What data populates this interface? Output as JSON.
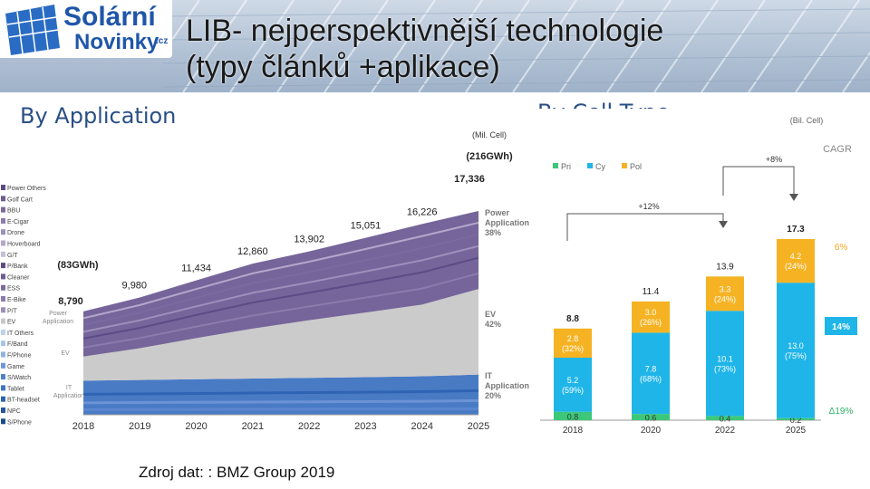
{
  "logo": {
    "word1": "Solární",
    "word2": "Novinky",
    "suffix": ".cz"
  },
  "title_line1": "LIB- nejperspektivnější technologie",
  "title_line2": "(typy článků +aplikace)",
  "credit": "Zdroj dat: : BMZ Group 2019",
  "colors": {
    "brand": "#1f56a8",
    "section": "#2a4f86",
    "pri": "#3cc878",
    "cy": "#1fb5e8",
    "pol": "#f5b323",
    "ev": "#c8c8c8",
    "power": "#6e5d95",
    "it": "#3f74c2"
  },
  "chart_data": [
    {
      "type": "area",
      "heading": "By Application",
      "unit_label": "(Mil. Cell)",
      "x": [
        "2018",
        "2019",
        "2020",
        "2021",
        "2022",
        "2023",
        "2024",
        "2025"
      ],
      "totals": [
        8790,
        9980,
        11434,
        12860,
        13902,
        15051,
        16226,
        17336
      ],
      "total_labels": [
        "8,790",
        "9,980",
        "11,434",
        "12,860",
        "13,902",
        "15,051",
        "16,226",
        "17,336"
      ],
      "start_note": "(83GWh)",
      "end_note": "(216GWh)",
      "series": [
        {
          "name": "IT",
          "values": [
            2900,
            2960,
            3020,
            3080,
            3140,
            3200,
            3270,
            3420
          ]
        },
        {
          "name": "EV",
          "values": [
            2050,
            2700,
            3500,
            4250,
            4900,
            5500,
            6100,
            7280
          ]
        },
        {
          "name": "Power",
          "values": [
            3840,
            4320,
            4914,
            5530,
            5862,
            6351,
            6856,
            6636
          ]
        }
      ],
      "band_labels": [
        "Power Application",
        "EV",
        "IT Application"
      ],
      "end_shares": [
        {
          "name": "Power Application",
          "share": "38%"
        },
        {
          "name": "EV",
          "share": "42%"
        },
        {
          "name": "IT Application",
          "share": "20%"
        }
      ],
      "legend": [
        "Power Others",
        "Golf Cart",
        "BBU",
        "E-Cigar",
        "Drone",
        "Hoverboard",
        "G/T",
        "P/Bank",
        "Cleaner",
        "ESS",
        "E-Bike",
        "P/T",
        "EV",
        "IT Others",
        "F/Band",
        "F/Phone",
        "Game",
        "S/Watch",
        "Tablet",
        "BT-headset",
        "NPC",
        "S/Phone"
      ],
      "ylim": [
        0,
        20000
      ]
    },
    {
      "type": "bar",
      "heading": "By Cell Type",
      "unit_label": "(Bil. Cell)",
      "categories": [
        "2018",
        "2020",
        "2022",
        "2025"
      ],
      "series": [
        {
          "name": "Pri",
          "values": [
            0.8,
            0.6,
            0.4,
            0.2
          ],
          "labels": [
            "0.8",
            "0.6",
            "0.4",
            "0.2"
          ]
        },
        {
          "name": "Cy",
          "values": [
            5.2,
            7.8,
            10.1,
            13.0
          ],
          "labels": [
            "5.2\n(59%)",
            "7.8\n(68%)",
            "10.1\n(73%)",
            "13.0\n(75%)"
          ]
        },
        {
          "name": "Pol",
          "values": [
            2.8,
            3.0,
            3.3,
            4.2
          ],
          "labels": [
            "2.8\n(32%)",
            "3.0\n(26%)",
            "3.3\n(24%)",
            "4.2\n(24%)"
          ]
        }
      ],
      "totals": [
        "8.8",
        "11.4",
        "13.9",
        "17.3"
      ],
      "cagr_label": "CAGR",
      "cagr": [
        {
          "name": "Pol",
          "value": "6%"
        },
        {
          "name": "Cy",
          "value": "14%"
        },
        {
          "name": "Pri",
          "value": "Δ19%"
        }
      ],
      "growth_arrows": [
        {
          "from": "2018",
          "to": "2022",
          "label": "+12%"
        },
        {
          "from": "2022",
          "to": "2025",
          "label": "+8%"
        }
      ],
      "ylim": [
        0,
        18
      ]
    }
  ]
}
